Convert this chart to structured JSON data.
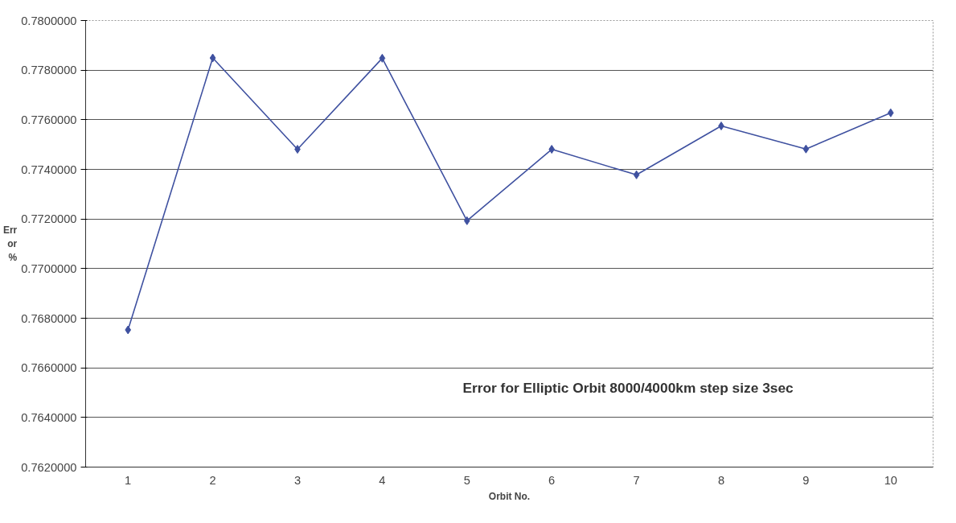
{
  "chart_data": {
    "type": "line",
    "title": "Error for Elliptic Orbit 8000/4000km step size 3sec",
    "xlabel": "Orbit No.",
    "ylabel": "Err or %",
    "categories": [
      "1",
      "2",
      "3",
      "4",
      "5",
      "6",
      "7",
      "8",
      "9",
      "10"
    ],
    "series": [
      {
        "color": "#3f51a0",
        "values": [
          0.76753,
          0.77849,
          0.77481,
          0.77848,
          0.77193,
          0.77481,
          0.77378,
          0.77575,
          0.77482,
          0.77628
        ]
      }
    ],
    "ylim": [
      0.762,
      0.78
    ],
    "yticks": [
      {
        "value": 0.762,
        "label": "0.7620000"
      },
      {
        "value": 0.764,
        "label": "0.7640000"
      },
      {
        "value": 0.766,
        "label": "0.7660000"
      },
      {
        "value": 0.768,
        "label": "0.7680000"
      },
      {
        "value": 0.77,
        "label": "0.7700000"
      },
      {
        "value": 0.772,
        "label": "0.7720000"
      },
      {
        "value": 0.774,
        "label": "0.7740000"
      },
      {
        "value": 0.776,
        "label": "0.7760000"
      },
      {
        "value": 0.778,
        "label": "0.7780000"
      },
      {
        "value": 0.78,
        "label": "0.7800000"
      }
    ],
    "grid": "y",
    "marker": "diamond",
    "line_style": "solid"
  }
}
